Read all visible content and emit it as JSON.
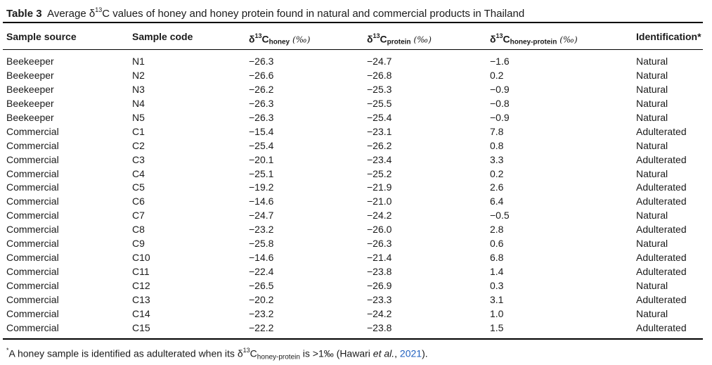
{
  "caption": {
    "label": "Table 3",
    "text_before": "Average δ",
    "sup": "13",
    "text_after": "C values of honey and honey protein found in natural and commercial products in Thailand"
  },
  "headers": {
    "source": "Sample source",
    "code": "Sample code",
    "delta_prefix": "δ",
    "sup": "13",
    "c": "C",
    "honey_sub": "honey",
    "protein_sub": "protein",
    "diff_sub": "honey-protein",
    "unit": "(‰)",
    "identification": "Identification*"
  },
  "rows": [
    {
      "source": "Beekeeper",
      "code": "N1",
      "honey": "−26.3",
      "protein": "−24.7",
      "diff": "−1.6",
      "ident": "Natural"
    },
    {
      "source": "Beekeeper",
      "code": "N2",
      "honey": "−26.6",
      "protein": "−26.8",
      "diff": "0.2",
      "ident": "Natural"
    },
    {
      "source": "Beekeeper",
      "code": "N3",
      "honey": "−26.2",
      "protein": "−25.3",
      "diff": "−0.9",
      "ident": "Natural"
    },
    {
      "source": "Beekeeper",
      "code": "N4",
      "honey": "−26.3",
      "protein": "−25.5",
      "diff": "−0.8",
      "ident": "Natural"
    },
    {
      "source": "Beekeeper",
      "code": "N5",
      "honey": "−26.3",
      "protein": "−25.4",
      "diff": "−0.9",
      "ident": "Natural"
    },
    {
      "source": "Commercial",
      "code": "C1",
      "honey": "−15.4",
      "protein": "−23.1",
      "diff": "7.8",
      "ident": "Adulterated"
    },
    {
      "source": "Commercial",
      "code": "C2",
      "honey": "−25.4",
      "protein": "−26.2",
      "diff": "0.8",
      "ident": "Natural"
    },
    {
      "source": "Commercial",
      "code": "C3",
      "honey": "−20.1",
      "protein": "−23.4",
      "diff": "3.3",
      "ident": "Adulterated"
    },
    {
      "source": "Commercial",
      "code": "C4",
      "honey": "−25.1",
      "protein": "−25.2",
      "diff": "0.2",
      "ident": "Natural"
    },
    {
      "source": "Commercial",
      "code": "C5",
      "honey": "−19.2",
      "protein": "−21.9",
      "diff": "2.6",
      "ident": "Adulterated"
    },
    {
      "source": "Commercial",
      "code": "C6",
      "honey": "−14.6",
      "protein": "−21.0",
      "diff": "6.4",
      "ident": "Adulterated"
    },
    {
      "source": "Commercial",
      "code": "C7",
      "honey": "−24.7",
      "protein": "−24.2",
      "diff": "−0.5",
      "ident": "Natural"
    },
    {
      "source": "Commercial",
      "code": "C8",
      "honey": "−23.2",
      "protein": "−26.0",
      "diff": "2.8",
      "ident": "Adulterated"
    },
    {
      "source": "Commercial",
      "code": "C9",
      "honey": "−25.8",
      "protein": "−26.3",
      "diff": "0.6",
      "ident": "Natural"
    },
    {
      "source": "Commercial",
      "code": "C10",
      "honey": "−14.6",
      "protein": "−21.4",
      "diff": "6.8",
      "ident": "Adulterated"
    },
    {
      "source": "Commercial",
      "code": "C11",
      "honey": "−22.4",
      "protein": "−23.8",
      "diff": "1.4",
      "ident": "Adulterated"
    },
    {
      "source": "Commercial",
      "code": "C12",
      "honey": "−26.5",
      "protein": "−26.9",
      "diff": "0.3",
      "ident": "Natural"
    },
    {
      "source": "Commercial",
      "code": "C13",
      "honey": "−20.2",
      "protein": "−23.3",
      "diff": "3.1",
      "ident": "Adulterated"
    },
    {
      "source": "Commercial",
      "code": "C14",
      "honey": "−23.2",
      "protein": "−24.2",
      "diff": "1.0",
      "ident": "Natural"
    },
    {
      "source": "Commercial",
      "code": "C15",
      "honey": "−22.2",
      "protein": "−23.8",
      "diff": "1.5",
      "ident": "Adulterated"
    }
  ],
  "footnote": {
    "marker": "*",
    "text1": "A honey sample is identified as adulterated when its δ",
    "sup": "13",
    "c": "C",
    "sub": "honey-protein",
    "text2": " is >1‰ (Hawari ",
    "etal": "et al.",
    "text3": ", ",
    "year": "2021",
    "text4": ")."
  }
}
